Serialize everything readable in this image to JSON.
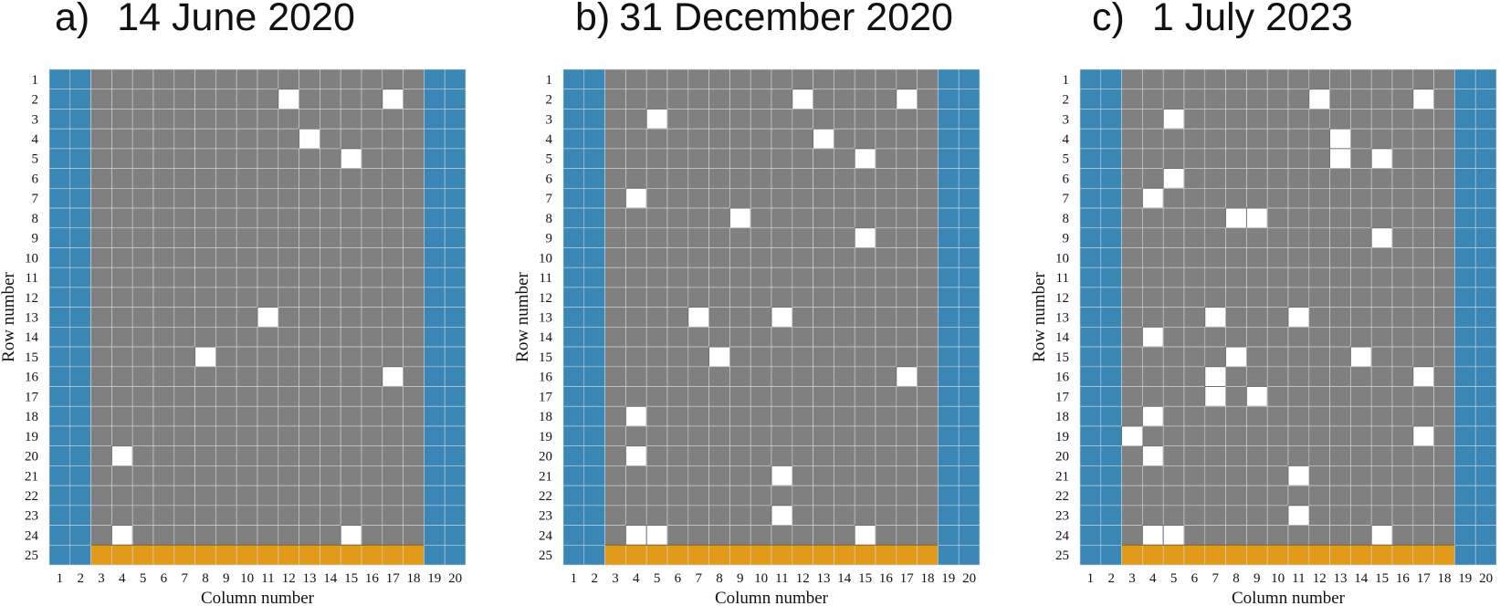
{
  "chart_data": [
    {
      "type": "heatmap",
      "title": "14 June 2020",
      "panel_label": "a)",
      "xlabel": "Column number",
      "ylabel": "Row number",
      "rows": 25,
      "columns": 20,
      "x_ticks": [
        1,
        2,
        3,
        4,
        5,
        6,
        7,
        8,
        9,
        10,
        11,
        12,
        13,
        14,
        15,
        16,
        17,
        18,
        19,
        20
      ],
      "y_ticks": [
        1,
        2,
        3,
        4,
        5,
        6,
        7,
        8,
        9,
        10,
        11,
        12,
        13,
        14,
        15,
        16,
        17,
        18,
        19,
        20,
        21,
        22,
        23,
        24,
        25
      ],
      "categories": {
        "blue": {
          "columns": [
            1,
            2,
            19,
            20
          ],
          "color": "#3a86b5"
        },
        "gray": {
          "columns": [
            3,
            4,
            5,
            6,
            7,
            8,
            9,
            10,
            11,
            12,
            13,
            14,
            15,
            16,
            17,
            18
          ],
          "rows": [
            1,
            24
          ],
          "color": "#808080"
        },
        "orange": {
          "columns": [
            3,
            18
          ],
          "row": 25,
          "color": "#e19a1a"
        },
        "white": {
          "color": "#ffffff"
        }
      },
      "white_cells": [
        [
          2,
          12
        ],
        [
          2,
          17
        ],
        [
          4,
          13
        ],
        [
          5,
          15
        ],
        [
          13,
          11
        ],
        [
          15,
          8
        ],
        [
          16,
          17
        ],
        [
          20,
          4
        ],
        [
          24,
          4
        ],
        [
          24,
          15
        ]
      ]
    },
    {
      "type": "heatmap",
      "title": "31 December 2020",
      "panel_label": "b)",
      "xlabel": "Column number",
      "ylabel": "Row number",
      "rows": 25,
      "columns": 20,
      "x_ticks": [
        1,
        2,
        3,
        4,
        5,
        6,
        7,
        8,
        9,
        10,
        11,
        12,
        13,
        14,
        15,
        16,
        17,
        18,
        19,
        20
      ],
      "y_ticks": [
        1,
        2,
        3,
        4,
        5,
        6,
        7,
        8,
        9,
        10,
        11,
        12,
        13,
        14,
        15,
        16,
        17,
        18,
        19,
        20,
        21,
        22,
        23,
        24,
        25
      ],
      "white_cells": [
        [
          2,
          12
        ],
        [
          2,
          17
        ],
        [
          3,
          5
        ],
        [
          4,
          13
        ],
        [
          5,
          15
        ],
        [
          7,
          4
        ],
        [
          8,
          9
        ],
        [
          9,
          15
        ],
        [
          13,
          7
        ],
        [
          13,
          11
        ],
        [
          15,
          8
        ],
        [
          16,
          17
        ],
        [
          18,
          4
        ],
        [
          20,
          4
        ],
        [
          21,
          11
        ],
        [
          23,
          11
        ],
        [
          24,
          4
        ],
        [
          24,
          5
        ],
        [
          24,
          15
        ]
      ]
    },
    {
      "type": "heatmap",
      "title": "1 July 2023",
      "panel_label": "c)",
      "xlabel": "Column number",
      "ylabel": "Row number",
      "rows": 25,
      "columns": 20,
      "x_ticks": [
        1,
        2,
        3,
        4,
        5,
        6,
        7,
        8,
        9,
        10,
        11,
        12,
        13,
        14,
        15,
        16,
        17,
        18,
        19,
        20
      ],
      "y_ticks": [
        1,
        2,
        3,
        4,
        5,
        6,
        7,
        8,
        9,
        10,
        11,
        12,
        13,
        14,
        15,
        16,
        17,
        18,
        19,
        20,
        21,
        22,
        23,
        24,
        25
      ],
      "white_cells": [
        [
          2,
          12
        ],
        [
          2,
          17
        ],
        [
          3,
          5
        ],
        [
          4,
          13
        ],
        [
          5,
          13
        ],
        [
          5,
          15
        ],
        [
          6,
          5
        ],
        [
          7,
          4
        ],
        [
          8,
          8
        ],
        [
          8,
          9
        ],
        [
          9,
          15
        ],
        [
          13,
          7
        ],
        [
          13,
          11
        ],
        [
          14,
          4
        ],
        [
          15,
          8
        ],
        [
          15,
          14
        ],
        [
          16,
          7
        ],
        [
          16,
          17
        ],
        [
          17,
          7
        ],
        [
          17,
          9
        ],
        [
          18,
          4
        ],
        [
          19,
          3
        ],
        [
          19,
          17
        ],
        [
          20,
          4
        ],
        [
          21,
          11
        ],
        [
          23,
          11
        ],
        [
          24,
          4
        ],
        [
          24,
          5
        ],
        [
          24,
          15
        ]
      ]
    }
  ]
}
